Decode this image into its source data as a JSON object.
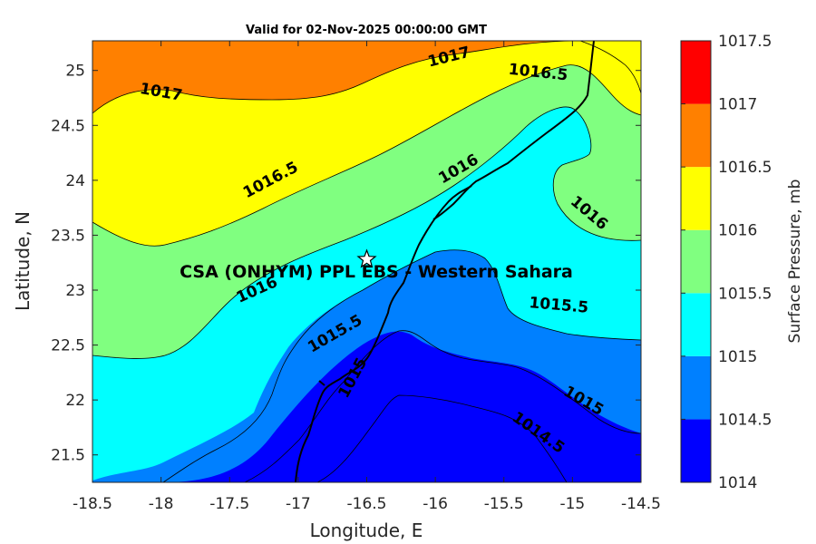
{
  "chart_data": {
    "type": "contour",
    "title": "Valid for 02-Nov-2025 00:00:00 GMT",
    "xlabel": "Longitude, E",
    "ylabel": "Latitude, N",
    "xlim": [
      -18.5,
      -14.5
    ],
    "ylim": [
      21.25,
      25.27
    ],
    "xticks": [
      -18.5,
      -18,
      -17.5,
      -17,
      -16.5,
      -16,
      -15.5,
      -15,
      -14.5
    ],
    "xtick_labels": [
      "-18.5",
      "-18",
      "-17.5",
      "-17",
      "-16.5",
      "-16",
      "-15.5",
      "-15",
      "-14.5"
    ],
    "yticks": [
      21.5,
      22,
      22.5,
      23,
      23.5,
      24,
      24.5,
      25
    ],
    "ytick_labels": [
      "21.5",
      "22",
      "22.5",
      "23",
      "23.5",
      "24",
      "24.5",
      "25"
    ],
    "colorbar": {
      "label": "Surface Pressure, mb",
      "levels": [
        1014,
        1014.5,
        1015,
        1015.5,
        1016,
        1016.5,
        1017,
        1017.5
      ],
      "level_labels": [
        "1014",
        "1014.5",
        "1015",
        "1015.5",
        "1016",
        "1016.5",
        "1017",
        "1017.5"
      ],
      "colors": [
        "#0000ff",
        "#0080ff",
        "#00ffff",
        "#80ff80",
        "#ffff00",
        "#ff8000",
        "#ff0000",
        "#800000"
      ]
    },
    "contour_labels": [
      {
        "text": "1017",
        "lon": -18.0,
        "lat": 24.8,
        "angle": 10
      },
      {
        "text": "1017",
        "lon": -15.9,
        "lat": 25.12,
        "angle": -14
      },
      {
        "text": "1016.5",
        "lon": -17.2,
        "lat": 24.0,
        "angle": -28
      },
      {
        "text": "1016.5",
        "lon": -15.25,
        "lat": 24.98,
        "angle": 6
      },
      {
        "text": "1016",
        "lon": -17.3,
        "lat": 23.0,
        "angle": -24
      },
      {
        "text": "1016",
        "lon": -15.83,
        "lat": 24.1,
        "angle": -30
      },
      {
        "text": "1016",
        "lon": -14.88,
        "lat": 23.7,
        "angle": 40
      },
      {
        "text": "1015.5",
        "lon": -16.73,
        "lat": 22.6,
        "angle": -30
      },
      {
        "text": "1015.5",
        "lon": -15.1,
        "lat": 22.86,
        "angle": 5
      },
      {
        "text": "1015",
        "lon": -16.6,
        "lat": 22.2,
        "angle": -62
      },
      {
        "text": "1015",
        "lon": -14.92,
        "lat": 21.99,
        "angle": 30
      },
      {
        "text": "1014.5",
        "lon": -15.25,
        "lat": 21.7,
        "angle": 35
      }
    ],
    "site": {
      "name": "CSA (ONHYM) PPL EBS  - Western Sahara",
      "lon": -16.5,
      "lat": 23.28
    }
  }
}
